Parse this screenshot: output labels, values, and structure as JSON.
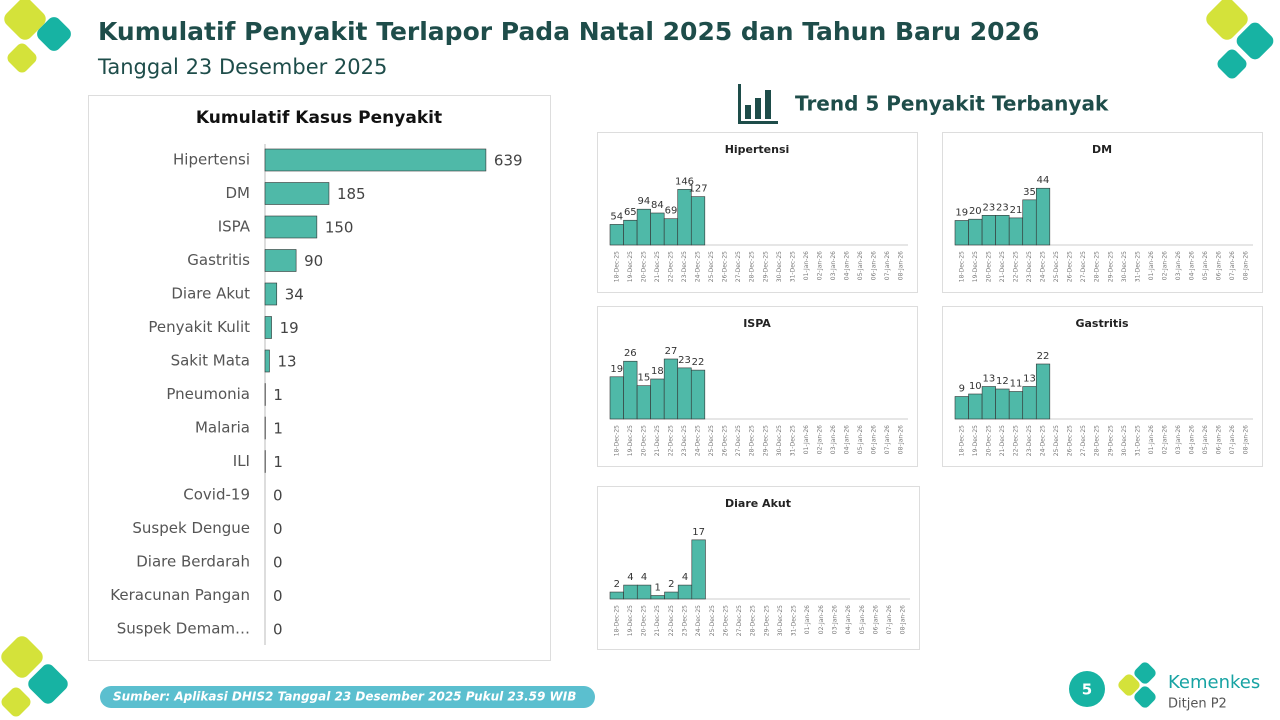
{
  "header": {
    "title": "Kumulatif Penyakit Terlapor Pada Natal 2025 dan Tahun Baru 2026",
    "subtitle": "Tanggal 23 Desember 2025"
  },
  "trend_title": "Trend 5 Penyakit Terbanyak",
  "source": "Sumber: Aplikasi DHIS2 Tanggal 23 Desember 2025 Pukul 23.59 WIB",
  "page_number": 5,
  "logo": {
    "name": "Kemenkes",
    "unit": "Ditjen P2"
  },
  "chart_data": [
    {
      "type": "bar",
      "orientation": "horizontal",
      "title": "Kumulatif Kasus Penyakit",
      "color": "#4fb9a8",
      "categories": [
        "Hipertensi",
        "DM",
        "ISPA",
        "Gastritis",
        "Diare Akut",
        "Penyakit Kulit",
        "Sakit Mata",
        "Pneumonia",
        "Malaria",
        "ILI",
        "Covid-19",
        "Suspek Dengue",
        "Diare Berdarah",
        "Keracunan Pangan",
        "Suspek Demam…"
      ],
      "values": [
        639,
        185,
        150,
        90,
        34,
        19,
        13,
        1,
        1,
        1,
        0,
        0,
        0,
        0,
        0
      ],
      "xlim": [
        0,
        700
      ]
    },
    {
      "type": "bar",
      "title": "Hipertensi",
      "color": "#4fb9a8",
      "categories": [
        "18-Dec-25",
        "19-Dec-25",
        "20-Dec-25",
        "21-Dec-25",
        "22-Dec-25",
        "23-Dec-25",
        "24-Dec-25",
        "25-Dec-25",
        "26-Dec-25",
        "27-Dec-25",
        "28-Dec-25",
        "29-Dec-25",
        "30-Dec-25",
        "31-Dec-25",
        "01-Jan-26",
        "02-Jan-26",
        "03-Jan-26",
        "04-Jan-26",
        "05-Jan-26",
        "06-Jan-26",
        "07-Jan-26",
        "08-Jan-26"
      ],
      "values": [
        54,
        65,
        94,
        84,
        69,
        146,
        127,
        null,
        null,
        null,
        null,
        null,
        null,
        null,
        null,
        null,
        null,
        null,
        null,
        null,
        null,
        null
      ],
      "ylim": [
        0,
        210
      ]
    },
    {
      "type": "bar",
      "title": "DM",
      "color": "#4fb9a8",
      "categories": [
        "18-Dec-25",
        "19-Dec-25",
        "20-Dec-25",
        "21-Dec-25",
        "22-Dec-25",
        "23-Dec-25",
        "24-Dec-25",
        "25-Dec-25",
        "26-Dec-25",
        "27-Dec-25",
        "28-Dec-25",
        "29-Dec-25",
        "30-Dec-25",
        "31-Dec-25",
        "01-Jan-26",
        "02-Jan-26",
        "03-Jan-26",
        "04-Jan-26",
        "05-Jan-26",
        "06-Jan-26",
        "07-Jan-26",
        "08-Jan-26"
      ],
      "values": [
        19,
        20,
        23,
        23,
        21,
        35,
        44,
        null,
        null,
        null,
        null,
        null,
        null,
        null,
        null,
        null,
        null,
        null,
        null,
        null,
        null,
        null
      ],
      "ylim": [
        0,
        62
      ]
    },
    {
      "type": "bar",
      "title": "ISPA",
      "color": "#4fb9a8",
      "categories": [
        "18-Dec-25",
        "19-Dec-25",
        "20-Dec-25",
        "21-Dec-25",
        "22-Dec-25",
        "23-Dec-25",
        "24-Dec-25",
        "25-Dec-25",
        "26-Dec-25",
        "27-Dec-25",
        "28-Dec-25",
        "29-Dec-25",
        "30-Dec-25",
        "31-Dec-25",
        "01-Jan-26",
        "02-Jan-26",
        "03-Jan-26",
        "04-Jan-26",
        "05-Jan-26",
        "06-Jan-26",
        "07-Jan-26",
        "08-Jan-26"
      ],
      "values": [
        19,
        26,
        15,
        18,
        27,
        23,
        22,
        null,
        null,
        null,
        null,
        null,
        null,
        null,
        null,
        null,
        null,
        null,
        null,
        null,
        null,
        null
      ],
      "ylim": [
        0,
        36
      ]
    },
    {
      "type": "bar",
      "title": "Gastritis",
      "color": "#4fb9a8",
      "categories": [
        "18-Dec-25",
        "19-Dec-25",
        "20-Dec-25",
        "21-Dec-25",
        "22-Dec-25",
        "23-Dec-25",
        "24-Dec-25",
        "25-Dec-25",
        "26-Dec-25",
        "27-Dec-25",
        "28-Dec-25",
        "29-Dec-25",
        "30-Dec-25",
        "31-Dec-25",
        "01-Jan-26",
        "02-Jan-26",
        "03-Jan-26",
        "04-Jan-26",
        "05-Jan-26",
        "06-Jan-26",
        "07-Jan-26",
        "08-Jan-26"
      ],
      "values": [
        9,
        10,
        13,
        12,
        11,
        13,
        22,
        null,
        null,
        null,
        null,
        null,
        null,
        null,
        null,
        null,
        null,
        null,
        null,
        null,
        null,
        null
      ],
      "ylim": [
        0,
        32
      ]
    },
    {
      "type": "bar",
      "title": "Diare Akut",
      "color": "#4fb9a8",
      "categories": [
        "18-Dec-25",
        "19-Dec-25",
        "20-Dec-25",
        "21-Dec-25",
        "22-Dec-25",
        "23-Dec-25",
        "24-Dec-25",
        "25-Dec-25",
        "26-Dec-25",
        "27-Dec-25",
        "28-Dec-25",
        "29-Dec-25",
        "30-Dec-25",
        "31-Dec-25",
        "01-Jan-26",
        "02-Jan-26",
        "03-Jan-26",
        "04-Jan-26",
        "05-Jan-26",
        "06-Jan-26",
        "07-Jan-26",
        "08-Jan-26"
      ],
      "values": [
        2,
        4,
        4,
        1,
        2,
        4,
        17,
        null,
        null,
        null,
        null,
        null,
        null,
        null,
        null,
        null,
        null,
        null,
        null,
        null,
        null,
        null
      ],
      "ylim": [
        0,
        23
      ]
    }
  ]
}
